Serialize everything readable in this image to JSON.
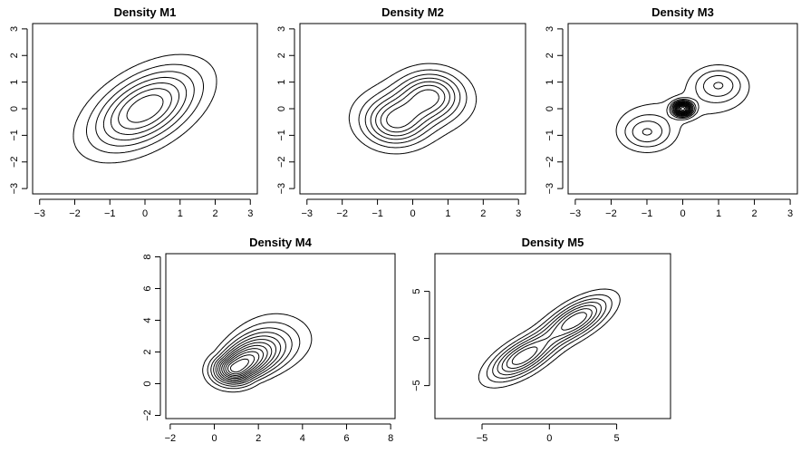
{
  "chart_data": [
    {
      "type": "contour",
      "title": "Density M1",
      "xticks": [
        -3,
        -2,
        -1,
        0,
        1,
        2,
        3
      ],
      "yticks": [
        -3,
        -2,
        -1,
        0,
        1,
        2,
        3
      ],
      "xlim": [
        -3.2,
        3.2
      ],
      "ylim": [
        -3.2,
        3.2
      ],
      "density": {
        "kind": "gaussian",
        "mean": [
          0,
          0
        ],
        "sd": [
          1,
          1
        ],
        "rho": 0.5
      }
    },
    {
      "type": "contour",
      "title": "Density M2",
      "xticks": [
        -3,
        -2,
        -1,
        0,
        1,
        2,
        3
      ],
      "yticks": [
        -3,
        -2,
        -1,
        0,
        1,
        2,
        3
      ],
      "xlim": [
        -3.2,
        3.2
      ],
      "ylim": [
        -3.2,
        3.2
      ],
      "density": {
        "kind": "mixture",
        "components": [
          {
            "weight": 0.5,
            "mean": [
              -0.5,
              -0.5
            ],
            "sd": [
              0.6,
              0.6
            ],
            "rho": 0
          },
          {
            "weight": 0.5,
            "mean": [
              0.5,
              0.5
            ],
            "sd": [
              0.6,
              0.6
            ],
            "rho": 0
          },
          {
            "weight": 0.3,
            "mean": [
              0,
              0
            ],
            "sd": [
              1.2,
              0.8
            ],
            "rho": 0
          }
        ]
      }
    },
    {
      "type": "contour",
      "title": "Density M3",
      "xticks": [
        -3,
        -2,
        -1,
        0,
        1,
        2,
        3
      ],
      "yticks": [
        -3,
        -2,
        -1,
        0,
        1,
        2,
        3
      ],
      "xlim": [
        -3.2,
        3.2
      ],
      "ylim": [
        -3.2,
        3.2
      ],
      "density": {
        "kind": "mixture",
        "components": [
          {
            "weight": 0.4,
            "mean": [
              -1,
              -0.9
            ],
            "sd": [
              0.5,
              0.45
            ],
            "rho": 0
          },
          {
            "weight": 0.4,
            "mean": [
              1,
              0.9
            ],
            "sd": [
              0.5,
              0.45
            ],
            "rho": 0
          },
          {
            "weight": 0.2,
            "mean": [
              0,
              0
            ],
            "sd": [
              0.18,
              0.18
            ],
            "rho": 0
          },
          {
            "weight": 0.3,
            "mean": [
              0,
              0
            ],
            "sd": [
              1.3,
              0.5
            ],
            "rho": 0
          }
        ]
      }
    },
    {
      "type": "contour",
      "title": "Density M4",
      "xticks": [
        -2,
        0,
        2,
        4,
        6,
        8
      ],
      "yticks": [
        -2,
        0,
        2,
        4,
        6,
        8
      ],
      "xlim": [
        -2.2,
        8.2
      ],
      "ylim": [
        -2.2,
        8.2
      ],
      "density": {
        "kind": "skewed",
        "mode": [
          1,
          1
        ],
        "rho": 0.5
      }
    },
    {
      "type": "contour",
      "title": "Density M5",
      "xticks": [
        -5,
        0,
        5
      ],
      "yticks": [
        -5,
        0,
        5
      ],
      "xlim": [
        -8.5,
        9
      ],
      "ylim": [
        -8.5,
        9
      ],
      "density": {
        "kind": "mixture",
        "components": [
          {
            "weight": 0.5,
            "mean": [
              -2,
              -2
            ],
            "sd": [
              1.6,
              1.6
            ],
            "rho": 0.65
          },
          {
            "weight": 0.5,
            "mean": [
              2,
              2
            ],
            "sd": [
              1.6,
              1.6
            ],
            "rho": 0.65
          }
        ]
      }
    }
  ]
}
